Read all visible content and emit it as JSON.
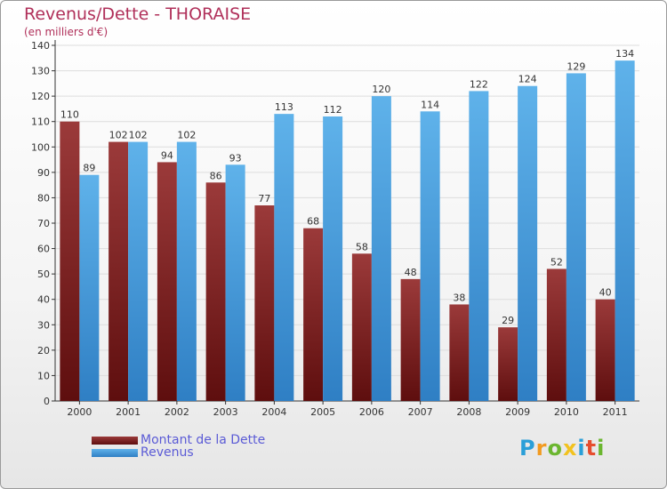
{
  "title": "Revenus/Dette - THORAISE",
  "subtitle": "(en milliers d'€)",
  "logo": {
    "text": "Proxiti",
    "letter_colors": [
      "#2a9fd8",
      "#f29a1f",
      "#6bb62f",
      "#f2c21f",
      "#2a9fd8",
      "#e64d2e",
      "#6bb62f"
    ]
  },
  "colors": {
    "dette_top": "#9b3a3a",
    "dette_bottom": "#5e0e0e",
    "revenus_top": "#5fb2ea",
    "revenus_bottom": "#2f7fc4",
    "axis": "#333333",
    "grid": "#dddddd",
    "text": "#333333"
  },
  "chart_data": {
    "type": "bar",
    "categories": [
      "2000",
      "2001",
      "2002",
      "2003",
      "2004",
      "2005",
      "2006",
      "2007",
      "2008",
      "2009",
      "2010",
      "2011"
    ],
    "series": [
      {
        "name": "Montant de la Dette",
        "values": [
          110,
          102,
          94,
          86,
          77,
          68,
          58,
          48,
          38,
          29,
          52,
          40
        ]
      },
      {
        "name": "Revenus",
        "values": [
          89,
          102,
          102,
          93,
          113,
          112,
          120,
          114,
          122,
          124,
          129,
          134
        ]
      }
    ],
    "ylim": [
      0,
      140
    ],
    "ytick_step": 10,
    "grid": true,
    "legend_position": "bottom-left"
  }
}
